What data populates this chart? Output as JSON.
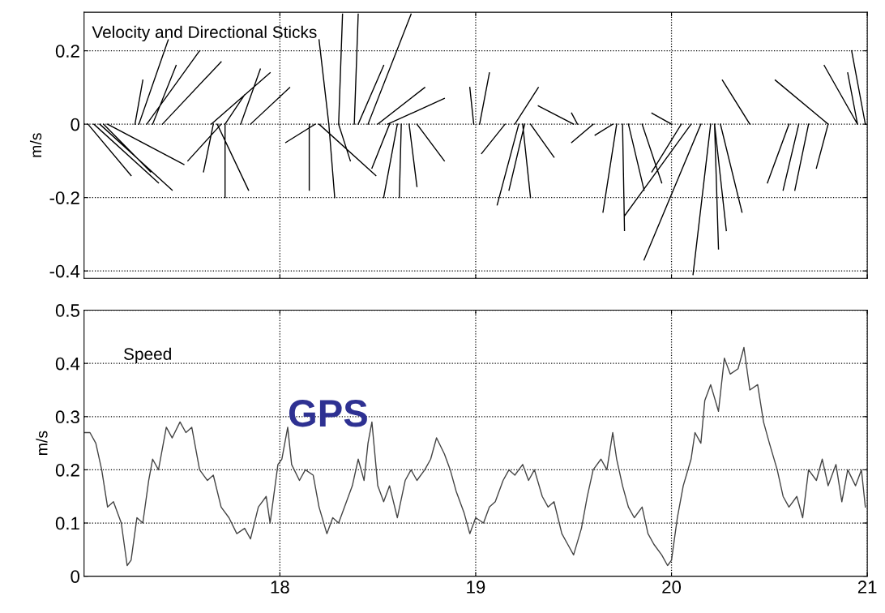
{
  "chart_data": [
    {
      "type": "line",
      "ylabel": "m/s",
      "annotations": [
        "Velocity and Directional Sticks"
      ],
      "xlim": [
        17,
        21
      ],
      "xticks": [
        18,
        19,
        20,
        21
      ],
      "ylim": [
        -0.42,
        0.305
      ],
      "yticks": [
        -0.4,
        -0.2,
        0,
        0.2
      ],
      "grid": true,
      "tick_labels": "y",
      "marker": "none",
      "series": [
        {
          "color": "#000000",
          "x": [
            17.02,
            17.24,
            null,
            17.08,
            17.45,
            null,
            17.12,
            17.51,
            null,
            17.05,
            17.38,
            null,
            17.1,
            17.34,
            null,
            17.28,
            17.43,
            null,
            17.32,
            17.59,
            null,
            17.4,
            17.7,
            null,
            17.26,
            17.3,
            null,
            17.35,
            17.47,
            null,
            17.7,
            17.53,
            null,
            17.68,
            17.84,
            null,
            17.72,
            17.72,
            null,
            17.66,
            17.61,
            null,
            17.65,
            17.95,
            null,
            17.72,
            17.82,
            null,
            17.85,
            18.05,
            null,
            17.8,
            17.9,
            null,
            18.15,
            18.15,
            null,
            18.2,
            18.49,
            null,
            18.25,
            18.28,
            null,
            18.3,
            18.36,
            null,
            18.18,
            18.03,
            null,
            18.3,
            18.32,
            null,
            18.38,
            18.4,
            null,
            18.45,
            18.67,
            null,
            18.25,
            18.2,
            null,
            18.4,
            18.53,
            null,
            18.55,
            18.84,
            null,
            18.5,
            18.74,
            null,
            18.6,
            18.53,
            null,
            18.66,
            18.7,
            null,
            18.62,
            18.61,
            null,
            18.7,
            18.84,
            null,
            18.56,
            18.47,
            null,
            18.99,
            18.97,
            null,
            19.02,
            19.07,
            null,
            19.2,
            19.32,
            null,
            19.22,
            19.11,
            null,
            19.24,
            19.28,
            null,
            19.15,
            19.03,
            null,
            19.28,
            19.4,
            null,
            19.25,
            19.17,
            null,
            19.5,
            19.32,
            null,
            19.52,
            19.49,
            null,
            19.75,
            19.76,
            null,
            19.78,
            19.86,
            null,
            19.72,
            19.65,
            null,
            19.85,
            19.95,
            null,
            19.6,
            19.49,
            null,
            19.7,
            19.61,
            null,
            20.2,
            20.11,
            null,
            20.15,
            19.86,
            null,
            20.22,
            20.24,
            null,
            20.25,
            20.36,
            null,
            20.22,
            20.28,
            null,
            20.1,
            19.76,
            null,
            20.05,
            19.9,
            null,
            20.0,
            19.9,
            null,
            20.4,
            20.26,
            null,
            20.6,
            20.49,
            null,
            20.65,
            20.57,
            null,
            20.8,
            20.74,
            null,
            20.7,
            20.63,
            null,
            20.95,
            20.78,
            null,
            20.99,
            20.92,
            null,
            20.95,
            20.9,
            null,
            20.8,
            20.53
          ],
          "values": [
            0,
            -0.14,
            null,
            0,
            -0.18,
            null,
            0,
            -0.11,
            null,
            0,
            -0.16,
            null,
            0,
            -0.13,
            null,
            0,
            0.23,
            null,
            0,
            0.2,
            null,
            0,
            0.17,
            null,
            0,
            0.12,
            null,
            0,
            0.16,
            null,
            0,
            -0.1,
            null,
            0,
            -0.18,
            null,
            0,
            -0.2,
            null,
            0,
            -0.13,
            null,
            0,
            0.14,
            null,
            0,
            0.08,
            null,
            0,
            0.1,
            null,
            0,
            0.15,
            null,
            0,
            -0.18,
            null,
            0,
            -0.14,
            null,
            0,
            -0.2,
            null,
            0,
            -0.1,
            null,
            0,
            -0.05,
            null,
            0,
            0.3,
            null,
            0,
            0.3,
            null,
            0,
            0.3,
            null,
            0,
            0.23,
            null,
            0,
            0.16,
            null,
            0,
            0.07,
            null,
            0,
            0.1,
            null,
            0,
            -0.2,
            null,
            0,
            -0.17,
            null,
            0,
            -0.2,
            null,
            0,
            -0.1,
            null,
            0,
            -0.12,
            null,
            0,
            0.1,
            null,
            0,
            0.14,
            null,
            0,
            0.1,
            null,
            0,
            -0.22,
            null,
            0,
            -0.2,
            null,
            0,
            -0.08,
            null,
            0,
            -0.09,
            null,
            0,
            -0.18,
            null,
            0,
            0.05,
            null,
            0,
            0.03,
            null,
            0,
            -0.29,
            null,
            0,
            -0.18,
            null,
            0,
            -0.24,
            null,
            0,
            -0.16,
            null,
            0,
            -0.05,
            null,
            0,
            -0.03,
            null,
            0,
            -0.41,
            null,
            0,
            -0.37,
            null,
            0,
            -0.34,
            null,
            0,
            -0.24,
            null,
            0,
            -0.29,
            null,
            0,
            -0.25,
            null,
            0,
            -0.13,
            null,
            0,
            0.03,
            null,
            0,
            0.12,
            null,
            0,
            -0.16,
            null,
            0,
            -0.18,
            null,
            0,
            -0.12,
            null,
            0,
            -0.18,
            null,
            0,
            0.16,
            null,
            0,
            0.2,
            null,
            0,
            0.14,
            null,
            0,
            0.12
          ]
        }
      ]
    },
    {
      "type": "line",
      "ylabel": "m/s",
      "annotations": [
        "Speed",
        "GPS"
      ],
      "xlim": [
        17,
        21
      ],
      "xticks": [
        18,
        19,
        20,
        21
      ],
      "ylim": [
        0,
        0.5
      ],
      "yticks": [
        0,
        0.1,
        0.2,
        0.3,
        0.4,
        0.5
      ],
      "grid": true,
      "marker": "none",
      "series": [
        {
          "color": "#444444",
          "x": [
            17.0,
            17.03,
            17.06,
            17.09,
            17.12,
            17.15,
            17.19,
            17.22,
            17.24,
            17.27,
            17.3,
            17.33,
            17.35,
            17.38,
            17.42,
            17.45,
            17.49,
            17.52,
            17.55,
            17.59,
            17.63,
            17.66,
            17.7,
            17.74,
            17.78,
            17.82,
            17.85,
            17.89,
            17.93,
            17.95,
            17.99,
            18.01,
            18.04,
            18.06,
            18.1,
            18.13,
            18.17,
            18.2,
            18.24,
            18.27,
            18.3,
            18.34,
            18.37,
            18.4,
            18.43,
            18.45,
            18.47,
            18.5,
            18.53,
            18.56,
            18.6,
            18.64,
            18.67,
            18.7,
            18.74,
            18.77,
            18.8,
            18.84,
            18.87,
            18.9,
            18.94,
            18.97,
            19.0,
            19.04,
            19.07,
            19.1,
            19.14,
            19.17,
            19.2,
            19.24,
            19.27,
            19.3,
            19.34,
            19.37,
            19.4,
            19.44,
            19.47,
            19.5,
            19.54,
            19.57,
            19.6,
            19.64,
            19.67,
            19.7,
            19.72,
            19.75,
            19.78,
            19.81,
            19.85,
            19.88,
            19.91,
            19.95,
            19.98,
            20.0,
            20.03,
            20.06,
            20.1,
            20.12,
            20.15,
            20.17,
            20.2,
            20.24,
            20.27,
            20.3,
            20.34,
            20.37,
            20.4,
            20.44,
            20.47,
            20.5,
            20.54,
            20.57,
            20.6,
            20.64,
            20.67,
            20.7,
            20.74,
            20.77,
            20.8,
            20.84,
            20.87,
            20.9,
            20.94,
            20.97,
            20.99
          ],
          "values": [
            0.27,
            0.27,
            0.25,
            0.2,
            0.13,
            0.14,
            0.1,
            0.02,
            0.03,
            0.11,
            0.1,
            0.18,
            0.22,
            0.2,
            0.28,
            0.26,
            0.29,
            0.27,
            0.28,
            0.2,
            0.18,
            0.19,
            0.13,
            0.11,
            0.08,
            0.09,
            0.07,
            0.13,
            0.15,
            0.1,
            0.21,
            0.22,
            0.28,
            0.21,
            0.18,
            0.2,
            0.19,
            0.13,
            0.08,
            0.11,
            0.1,
            0.14,
            0.17,
            0.22,
            0.18,
            0.25,
            0.29,
            0.17,
            0.14,
            0.17,
            0.11,
            0.18,
            0.2,
            0.18,
            0.2,
            0.22,
            0.26,
            0.23,
            0.2,
            0.16,
            0.12,
            0.08,
            0.11,
            0.1,
            0.13,
            0.14,
            0.18,
            0.2,
            0.19,
            0.21,
            0.18,
            0.2,
            0.15,
            0.13,
            0.14,
            0.08,
            0.06,
            0.04,
            0.09,
            0.15,
            0.2,
            0.22,
            0.2,
            0.27,
            0.22,
            0.17,
            0.13,
            0.11,
            0.13,
            0.08,
            0.06,
            0.04,
            0.02,
            0.03,
            0.11,
            0.17,
            0.22,
            0.27,
            0.25,
            0.33,
            0.36,
            0.31,
            0.41,
            0.38,
            0.39,
            0.43,
            0.35,
            0.36,
            0.29,
            0.25,
            0.2,
            0.15,
            0.13,
            0.15,
            0.11,
            0.2,
            0.18,
            0.22,
            0.17,
            0.21,
            0.14,
            0.2,
            0.17,
            0.2,
            0.13
          ]
        }
      ]
    }
  ]
}
